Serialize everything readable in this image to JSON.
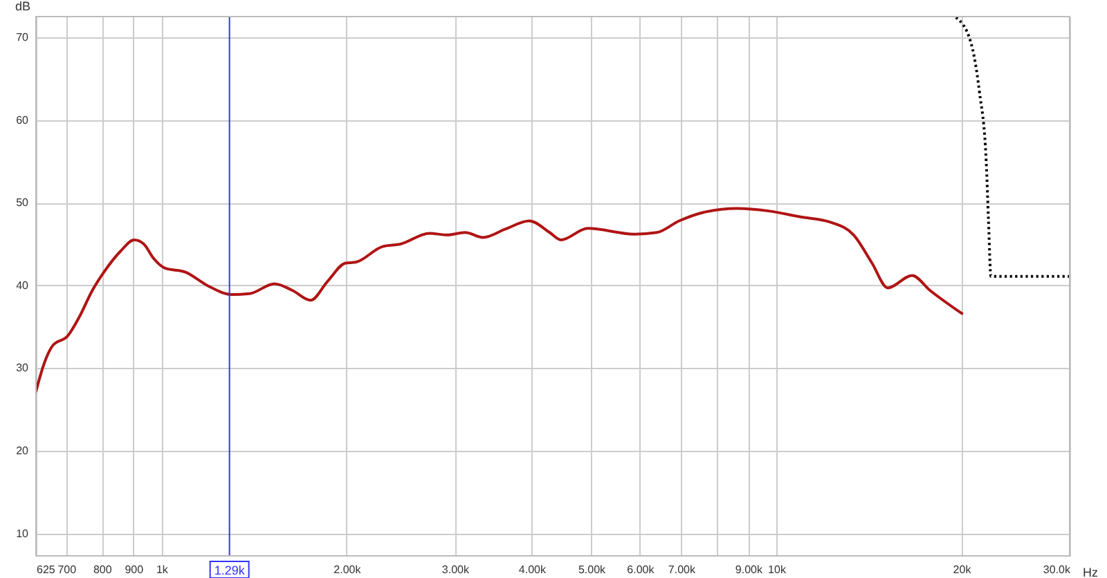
{
  "chart_data": {
    "type": "line",
    "ylabel": "dB",
    "log": "x",
    "xlabel": "Hz",
    "grid": true,
    "marker": "none",
    "xlim": [
      625,
      30000
    ],
    "ylim": [
      7.3,
      72.5
    ],
    "xticks": [
      625,
      700,
      800,
      900,
      {
        "value": 1000,
        "label": "1k"
      },
      {
        "value": 2000,
        "label": "2.00k"
      },
      {
        "value": 3000,
        "label": "3.00k"
      },
      {
        "value": 4000,
        "label": "4.00k"
      },
      {
        "value": 5000,
        "label": "5.00k"
      },
      {
        "value": 6000,
        "label": "6.00k"
      },
      {
        "value": 7000,
        "label": "7.00k"
      },
      {
        "value": 8000,
        "label": null
      },
      {
        "value": 9000,
        "label": "9.00k"
      },
      {
        "value": 10000,
        "label": "10k"
      },
      {
        "value": 20000,
        "label": "20k"
      },
      {
        "value": 30000,
        "label": "30.0k"
      }
    ],
    "yticks": [
      10,
      20,
      30,
      40,
      50,
      60,
      70
    ],
    "ref_lines": [
      {
        "axis": "x",
        "value": 1290,
        "label": "1.29k",
        "color": "#3333ff"
      }
    ],
    "series": [
      {
        "color": "#b01414",
        "line_style": "solid",
        "x": [
          625,
          644,
          665,
          704,
          734,
          772,
          806,
          857,
          903,
          936,
          970,
          1012,
          1094,
          1193,
          1301,
          1390,
          1527,
          1633,
          1748,
          1863,
          1993,
          2068,
          2289,
          2448,
          2728,
          2917,
          3119,
          3335,
          3624,
          3966,
          4280,
          4463,
          4935,
          5878,
          6393,
          6950,
          7682,
          8639,
          9709,
          10920,
          12300,
          13360,
          14310,
          15180,
          16630,
          17780,
          20040
        ],
        "values": [
          27.2,
          30.5,
          32.7,
          33.9,
          36.1,
          39.4,
          41.6,
          44.1,
          45.5,
          45.0,
          43.3,
          42.1,
          41.6,
          39.9,
          38.9,
          39.0,
          40.2,
          39.4,
          38.2,
          40.5,
          42.7,
          42.8,
          44.7,
          45.0,
          46.3,
          46.1,
          46.4,
          45.8,
          46.8,
          47.8,
          46.4,
          45.5,
          46.9,
          46.2,
          46.4,
          47.8,
          48.9,
          49.3,
          49.0,
          48.3,
          47.6,
          46.1,
          42.7,
          39.7,
          41.2,
          39.4,
          36.6
        ]
      },
      {
        "color": "#000000",
        "line_style": "dotted",
        "x": [
          19600,
          20700,
          21400,
          21950,
          22140,
          22340,
          30000
        ],
        "values": [
          72.4,
          69.5,
          63.4,
          55.0,
          47.8,
          41.1,
          41.1
        ]
      }
    ]
  }
}
